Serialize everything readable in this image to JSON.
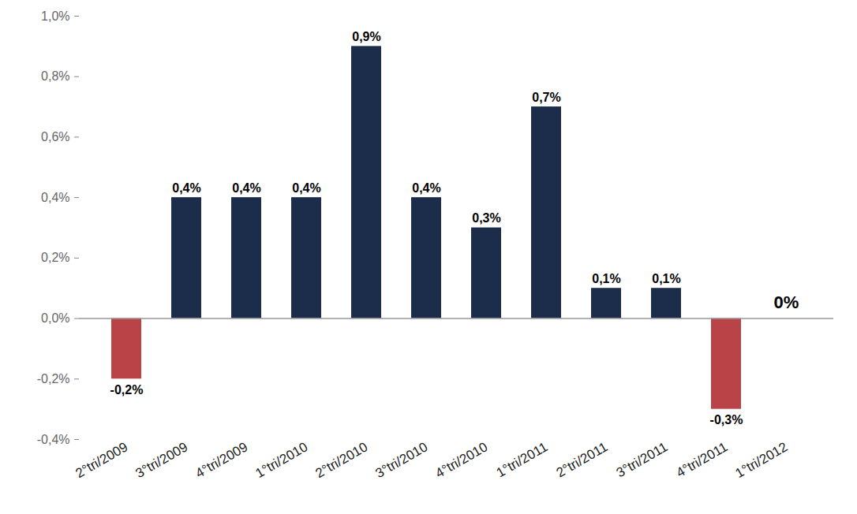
{
  "chart_data": {
    "type": "bar",
    "categories": [
      "2°tri/2009",
      "3°tri/2009",
      "4°tri/2009",
      "1°tri/2010",
      "2°tri/2010",
      "3°tri/2010",
      "4°tri/2010",
      "1°tri/2011",
      "2°tri/2011",
      "3°tri/2011",
      "4°tri/2011",
      "1°tri/2012"
    ],
    "values": [
      -0.2,
      0.4,
      0.4,
      0.4,
      0.9,
      0.4,
      0.3,
      0.7,
      0.1,
      0.1,
      -0.3,
      0
    ],
    "value_labels": [
      "-0,2%",
      "0,4%",
      "0,4%",
      "0,4%",
      "0,9%",
      "0,4%",
      "0,3%",
      "0,7%",
      "0,1%",
      "0,1%",
      "-0,3%",
      "0%"
    ],
    "colors": [
      "#b94346",
      "#1c2d4b",
      "#1c2d4b",
      "#1c2d4b",
      "#1c2d4b",
      "#1c2d4b",
      "#1c2d4b",
      "#1c2d4b",
      "#1c2d4b",
      "#1c2d4b",
      "#b94346",
      "#1c2d4b"
    ],
    "ylim": [
      -0.4,
      1.0
    ],
    "yticks": [
      {
        "value": -0.4,
        "label": "-0,4%"
      },
      {
        "value": -0.2,
        "label": "-0,2%"
      },
      {
        "value": 0,
        "label": "0,0%"
      },
      {
        "value": 0.2,
        "label": "0,2%"
      },
      {
        "value": 0.4,
        "label": "0,4%"
      },
      {
        "value": 0.6,
        "label": "0,6%"
      },
      {
        "value": 0.8,
        "label": "0,8%"
      },
      {
        "value": 1.0,
        "label": "1,0%"
      }
    ],
    "grid": false,
    "data_labels": true
  }
}
